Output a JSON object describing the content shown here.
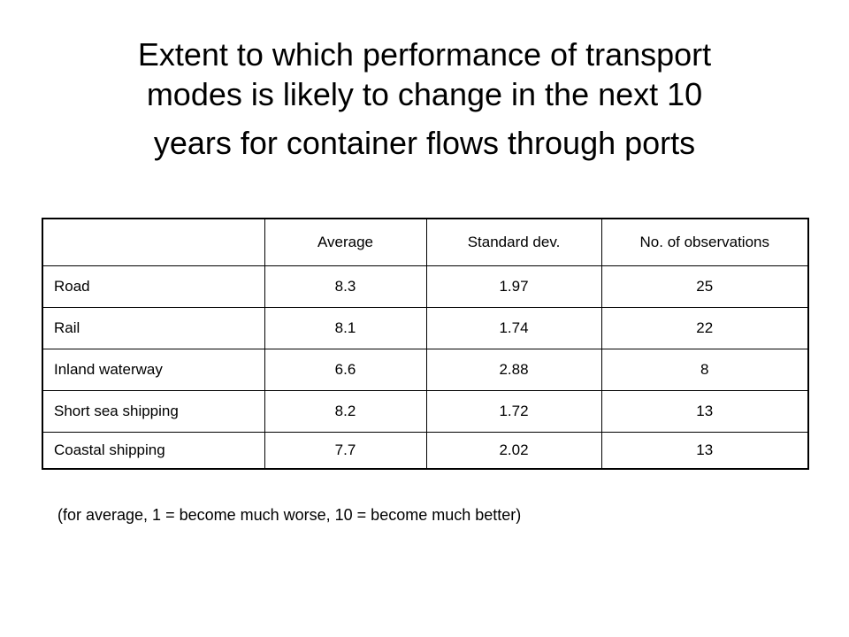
{
  "title": {
    "lines": [
      "Extent to which performance of transport",
      "modes is likely to change in the next 10",
      "years for container flows through ports"
    ]
  },
  "table": {
    "headers": [
      "",
      "Average",
      "Standard dev.",
      "No. of observations"
    ],
    "rows": [
      {
        "mode": "Road",
        "average": "8.3",
        "std_dev": "1.97",
        "observations": "25"
      },
      {
        "mode": "Rail",
        "average": "8.1",
        "std_dev": "1.74",
        "observations": "22"
      },
      {
        "mode": "Inland waterway",
        "average": "6.6",
        "std_dev": "2.88",
        "observations": "8"
      },
      {
        "mode": "Short sea shipping",
        "average": "8.2",
        "std_dev": "1.72",
        "observations": "13"
      },
      {
        "mode": "Coastal shipping",
        "average": "7.7",
        "std_dev": "2.02",
        "observations": "13"
      }
    ]
  },
  "footnote": "(for average, 1 = become much worse, 10 = become much better)"
}
